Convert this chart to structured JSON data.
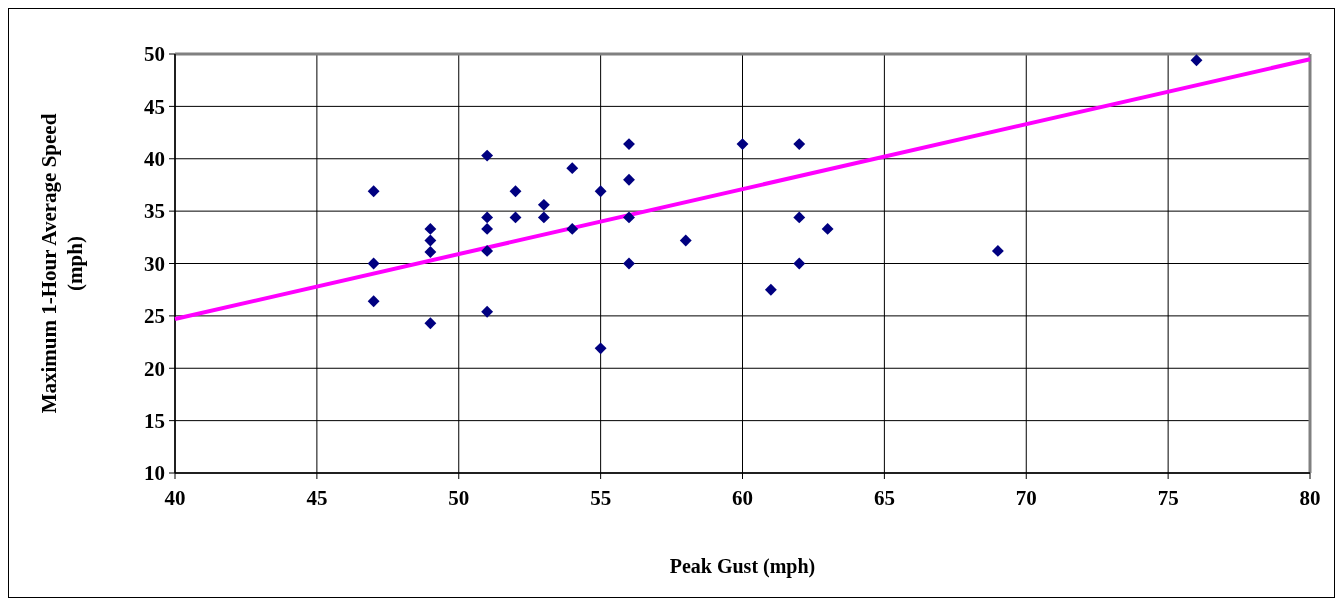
{
  "chart_data": {
    "type": "scatter",
    "xlabel": "Peak Gust (mph)",
    "ylabel": "Maximum 1-Hour Average Speed (mph)",
    "xlim": [
      40,
      80
    ],
    "ylim": [
      10,
      50
    ],
    "xticks": [
      40,
      45,
      50,
      55,
      60,
      65,
      70,
      75,
      80
    ],
    "yticks": [
      10,
      15,
      20,
      25,
      30,
      35,
      40,
      45,
      50
    ],
    "grid": true,
    "marker": "diamond",
    "series": [
      {
        "color": "#000080",
        "x": [
          47,
          47,
          47,
          49,
          49,
          49,
          49,
          51,
          51,
          51,
          51,
          51,
          52,
          52,
          53,
          53,
          54,
          54,
          55,
          55,
          56,
          56,
          56,
          56,
          58,
          60,
          61,
          62,
          62,
          62,
          63,
          69,
          76
        ],
        "values": [
          36.9,
          30,
          26.4,
          33.3,
          32.2,
          31.1,
          24.3,
          40.3,
          34.4,
          33.3,
          31.2,
          25.4,
          36.9,
          34.4,
          35.6,
          34.4,
          39.1,
          33.3,
          36.9,
          21.9,
          41.4,
          38,
          34.4,
          30,
          32.2,
          41.4,
          27.5,
          41.4,
          34.4,
          30,
          33.3,
          31.2,
          49.4
        ]
      },
      {
        "type": "line",
        "color": "#ff00ff",
        "marker": "none",
        "x": [
          40,
          80
        ],
        "values": [
          24.7,
          49.5
        ]
      }
    ]
  }
}
